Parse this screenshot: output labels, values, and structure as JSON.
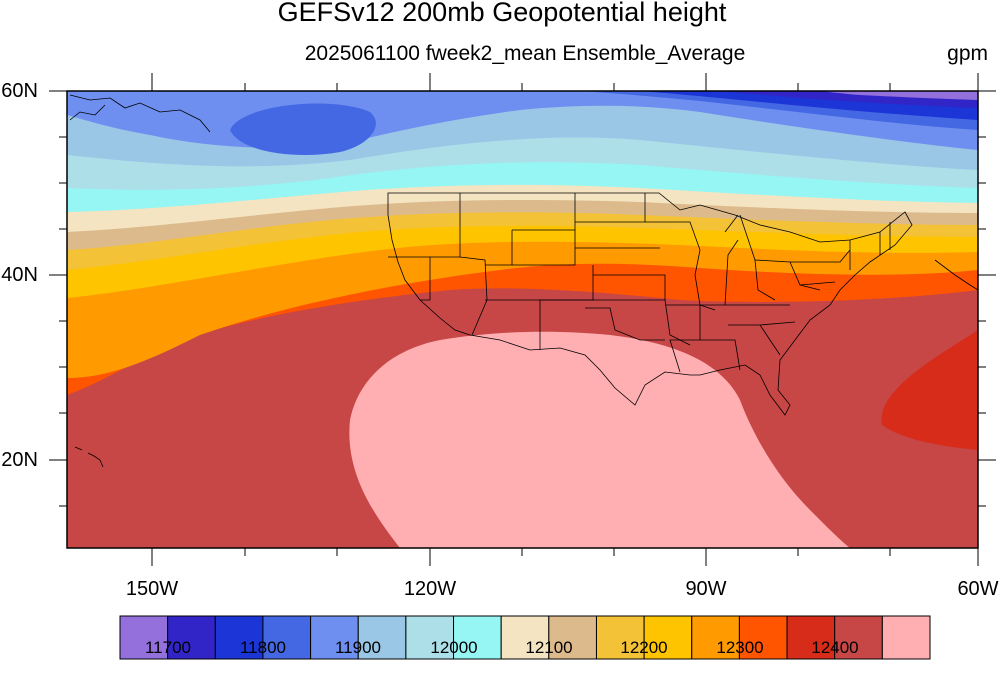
{
  "title": "GEFSv12 200mb Geopotential height",
  "subtitle": "2025061100 fweek2_mean Ensemble_Average",
  "units": "gpm",
  "map": {
    "lat_labels": [
      "60N",
      "40N",
      "20N"
    ],
    "lon_labels": [
      "150W",
      "120W",
      "90W",
      "60W"
    ],
    "lat_range": [
      10,
      60
    ],
    "lon_range": [
      -159,
      -60
    ]
  },
  "colorbar": {
    "colors": [
      "#9370db",
      "#3225c8",
      "#1b35d6",
      "#4468e3",
      "#6f8ff0",
      "#9ac7e6",
      "#addfe9",
      "#95f6f4",
      "#f4e4c2",
      "#dcba8c",
      "#f3c236",
      "#ffc400",
      "#ff9a00",
      "#ff5400",
      "#d62c19",
      "#c74646",
      "#ffafb2"
    ],
    "labels": [
      "11700",
      "11800",
      "11900",
      "12000",
      "12100",
      "12200",
      "12300",
      "12400"
    ]
  }
}
